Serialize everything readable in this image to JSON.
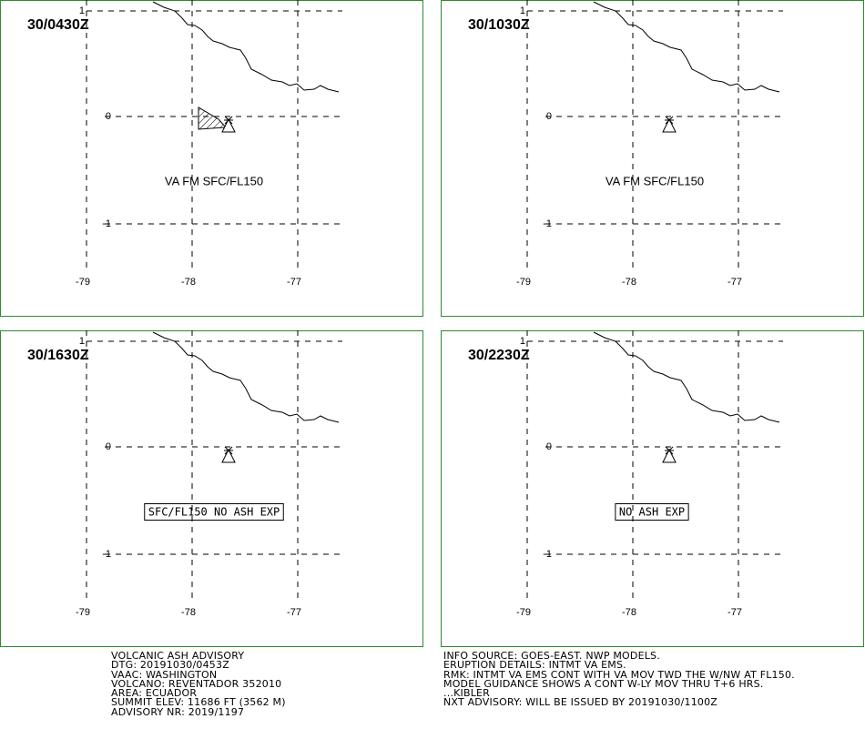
{
  "panels": [
    {
      "time": "30/0430Z",
      "lat_labels": [
        "1",
        "0",
        "-1"
      ],
      "lon_labels": [
        "-79",
        "-78",
        "-77"
      ],
      "annotation": "VA FM SFC/FL150"
    },
    {
      "time": "30/1030Z",
      "lat_labels": [
        "1",
        "0",
        "-1"
      ],
      "lon_labels": [
        "-79",
        "-78",
        "-77"
      ],
      "annotation": "VA FM SFC/FL150"
    },
    {
      "time": "30/1630Z",
      "lat_labels": [
        "1",
        "0",
        "-1"
      ],
      "lon_labels": [
        "-79",
        "-78",
        "-77"
      ],
      "annotation": "SFC/FL150 NO ASH EXP"
    },
    {
      "time": "30/2230Z",
      "lat_labels": [
        "1",
        "0",
        "-1"
      ],
      "lon_labels": [
        "-79",
        "-78",
        "-77"
      ],
      "annotation": "NO ASH EXP"
    }
  ],
  "footer_left": [
    "VOLCANIC ASH ADVISORY",
    "DTG: 20191030/0453Z",
    "VAAC: WASHINGTON",
    "VOLCANO: REVENTADOR 352010",
    "AREA: ECUADOR",
    "SUMMIT ELEV: 11686 FT (3562 M)",
    "ADVISORY NR: 2019/1197"
  ],
  "footer_right": [
    "INFO SOURCE: GOES-EAST. NWP MODELS.",
    "ERUPTION DETAILS: INTMT VA EMS.",
    "RMK: INTMT VA EMS CONT WITH VA MOV TWD THE W/NW AT FL150.",
    "MODEL GUIDANCE SHOWS A CONT W-LY MOV THRU T+6 HRS.",
    "...KIBLER",
    "NXT ADVISORY: WILL BE ISSUED BY 20191030/1100Z"
  ]
}
